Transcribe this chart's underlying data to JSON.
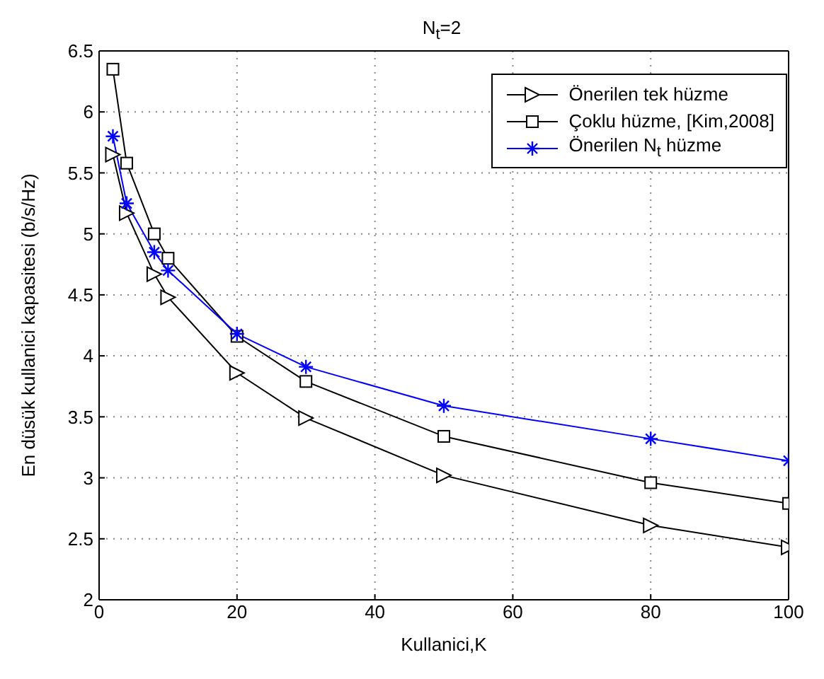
{
  "chart_data": {
    "type": "line",
    "title": "N$_{t}$=2",
    "xlabel": "Kullanici,K",
    "ylabel": "En düsük kullanici kapasitesi (b/s/Hz)",
    "x": [
      2,
      4,
      8,
      10,
      20,
      30,
      50,
      80,
      100
    ],
    "series": [
      {
        "name": "Önerilen tek hüzme",
        "color": "#000000",
        "marker": "triangle",
        "values": [
          5.65,
          5.17,
          4.67,
          4.48,
          3.86,
          3.49,
          3.02,
          2.61,
          2.43
        ]
      },
      {
        "name": "Çoklu hüzme, [Kim,2008]",
        "color": "#000000",
        "marker": "square",
        "values": [
          6.35,
          5.58,
          5.0,
          4.8,
          4.16,
          3.79,
          3.34,
          2.96,
          2.79
        ]
      },
      {
        "name": "Önerilen N$_{t}$ hüzme",
        "color": "#0000ff",
        "marker": "cross",
        "values": [
          5.8,
          5.25,
          4.85,
          4.7,
          4.18,
          3.91,
          3.59,
          3.32,
          3.14
        ]
      }
    ],
    "xlim": [
      0,
      100
    ],
    "xticks": [
      0,
      20,
      40,
      60,
      80,
      100
    ],
    "ylim": [
      2,
      6.5
    ],
    "yticks": [
      2,
      2.5,
      3,
      3.5,
      4,
      4.5,
      5,
      5.5,
      6,
      6.5
    ],
    "grid": true,
    "legend": "top right",
    "line_style": "solid"
  }
}
